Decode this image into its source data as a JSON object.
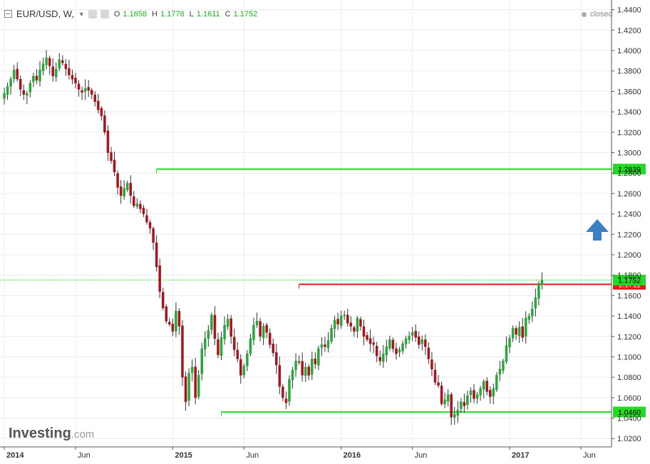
{
  "header": {
    "symbol": "EUR/USD, W,",
    "open_label": "O",
    "open": "1.1658",
    "high_label": "H",
    "high": "1.1778",
    "low_label": "L",
    "low": "1.1611",
    "close_label": "C",
    "close": "1.1752",
    "status": "closed"
  },
  "logo": {
    "brand": "Investing",
    "domain": ".com"
  },
  "colors": {
    "up": "#27a83a",
    "down": "#a8141b",
    "green_line": "#26d926",
    "red_line": "#e21a1a",
    "arrow": "#3b7fc4",
    "price_tag": "#26d926"
  },
  "chart_data": {
    "type": "candlestick",
    "ylim": [
      1.0118,
      1.4495
    ],
    "y_ticks": [
      "1.0200",
      "1.0400",
      "1.0600",
      "1.0800",
      "1.1000",
      "1.1200",
      "1.1400",
      "1.1600",
      "1.1800",
      "1.2000",
      "1.2200",
      "1.2400",
      "1.2600",
      "1.2800",
      "1.3000",
      "1.3200",
      "1.3400",
      "1.3600",
      "1.3800",
      "1.4000",
      "1.4200",
      "1.4400"
    ],
    "x_ticks": [
      {
        "label": "2014",
        "week": 0
      },
      {
        "label": "Jun",
        "week": 22
      },
      {
        "label": "2015",
        "week": 52
      },
      {
        "label": "Jun",
        "week": 74
      },
      {
        "label": "2016",
        "week": 104
      },
      {
        "label": "Jun",
        "week": 126
      },
      {
        "label": "2017",
        "week": 156
      },
      {
        "label": "Jun",
        "week": 178
      }
    ],
    "levels": [
      {
        "value": 1.2839,
        "label": "1.2839",
        "color": "green",
        "from_week": 47
      },
      {
        "value": 1.1711,
        "label": "1.1711",
        "color": "red",
        "from_week": 91
      },
      {
        "value": 1.046,
        "label": "1.0460",
        "color": "green",
        "from_week": 67
      }
    ],
    "last_price": {
      "value": 1.1752,
      "label": "1.1752"
    },
    "signal": "up-arrow",
    "closes": [
      1.358,
      1.365,
      1.372,
      1.381,
      1.372,
      1.362,
      1.357,
      1.358,
      1.368,
      1.375,
      1.371,
      1.381,
      1.387,
      1.393,
      1.385,
      1.375,
      1.382,
      1.391,
      1.388,
      1.382,
      1.376,
      1.372,
      1.368,
      1.362,
      1.359,
      1.363,
      1.361,
      1.357,
      1.35,
      1.342,
      1.336,
      1.32,
      1.3,
      1.292,
      1.281,
      1.266,
      1.258,
      1.265,
      1.27,
      1.258,
      1.248,
      1.25,
      1.245,
      1.24,
      1.232,
      1.226,
      1.212,
      1.188,
      1.164,
      1.148,
      1.135,
      1.132,
      1.125,
      1.145,
      1.13,
      1.08,
      1.056,
      1.084,
      1.09,
      1.06,
      1.082,
      1.108,
      1.118,
      1.126,
      1.141,
      1.118,
      1.102,
      1.119,
      1.131,
      1.137,
      1.12,
      1.107,
      1.098,
      1.082,
      1.091,
      1.103,
      1.118,
      1.131,
      1.135,
      1.12,
      1.13,
      1.124,
      1.112,
      1.104,
      1.092,
      1.071,
      1.06,
      1.055,
      1.078,
      1.087,
      1.096,
      1.095,
      1.082,
      1.09,
      1.082,
      1.098,
      1.093,
      1.108,
      1.112,
      1.11,
      1.116,
      1.128,
      1.136,
      1.132,
      1.14,
      1.141,
      1.133,
      1.13,
      1.125,
      1.138,
      1.13,
      1.12,
      1.117,
      1.113,
      1.112,
      1.101,
      1.096,
      1.103,
      1.11,
      1.117,
      1.108,
      1.103,
      1.107,
      1.113,
      1.118,
      1.12,
      1.124,
      1.119,
      1.112,
      1.117,
      1.11,
      1.098,
      1.088,
      1.075,
      1.072,
      1.054,
      1.058,
      1.063,
      1.041,
      1.044,
      1.048,
      1.056,
      1.052,
      1.062,
      1.067,
      1.059,
      1.063,
      1.069,
      1.076,
      1.066,
      1.061,
      1.069,
      1.082,
      1.088,
      1.096,
      1.111,
      1.118,
      1.128,
      1.122,
      1.129,
      1.119,
      1.138,
      1.14,
      1.147,
      1.158,
      1.171,
      1.1752
    ]
  }
}
